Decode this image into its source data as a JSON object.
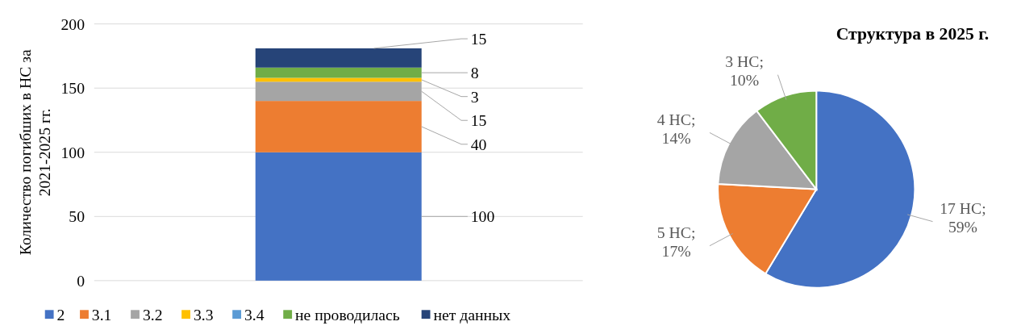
{
  "chart_data": [
    {
      "type": "bar",
      "stacked": true,
      "ylabel": "Количество погибших в НС за 2021-2025 гг.",
      "categories": [
        null
      ],
      "ylim": [
        0,
        200
      ],
      "yticks": [
        0,
        50,
        100,
        150,
        200
      ],
      "grid": "y",
      "legend": "bottom",
      "data_labels": true,
      "series": [
        {
          "name": "2",
          "color": "#4472c4",
          "values": [
            100
          ]
        },
        {
          "name": "3.1",
          "color": "#ed7d31",
          "values": [
            40
          ]
        },
        {
          "name": "3.2",
          "color": "#a5a5a5",
          "values": [
            15
          ]
        },
        {
          "name": "3.3",
          "color": "#ffc000",
          "values": [
            3
          ]
        },
        {
          "name": "3.4",
          "color": "#5b9bd5",
          "values": [
            null
          ]
        },
        {
          "name": "не проводилась",
          "color": "#70ad47",
          "values": [
            8
          ]
        },
        {
          "name": "нет данных",
          "color": "#264478",
          "values": [
            15
          ]
        }
      ]
    },
    {
      "type": "pie",
      "title": "Структура в 2025 г.",
      "categories": [
        null,
        null,
        null,
        null
      ],
      "values": [
        17,
        5,
        4,
        3
      ],
      "colors": [
        "#4472c4",
        "#ed7d31",
        "#a5a5a5",
        "#70ad47"
      ],
      "value_labels": [
        "17 НС; 59%",
        "5 НС; 17%",
        "4 НС; 14%",
        "3 НС; 10%"
      ]
    }
  ]
}
